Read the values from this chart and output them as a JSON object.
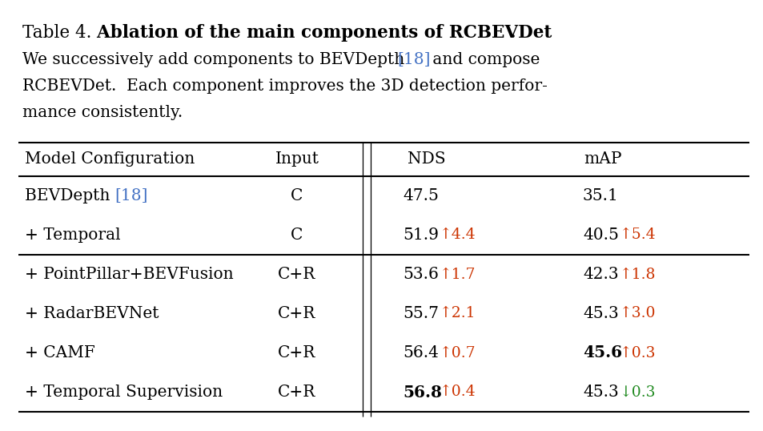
{
  "title_prefix": "Table 4.",
  "title_bold": "  Ablation of the main components of RCBEVDet",
  "subtitle_parts": [
    [
      {
        "text": "We successively add components to BEVDepth ",
        "color": "black",
        "bold": false
      },
      {
        "text": "[18]",
        "color": "#4472C4",
        "bold": false
      },
      {
        "text": " and compose",
        "color": "black",
        "bold": false
      }
    ],
    [
      {
        "text": "RCBEVDet.  Each component improves the 3D detection perfor-",
        "color": "black",
        "bold": false
      }
    ],
    [
      {
        "text": "mance consistently.",
        "color": "black",
        "bold": false
      }
    ]
  ],
  "col_headers": [
    "Model Configuration",
    "Input",
    "NDS",
    "mAP"
  ],
  "rows": [
    {
      "model_parts": [
        {
          "text": "BEVDepth ",
          "color": "black",
          "bold": false
        },
        {
          "text": "[18]",
          "color": "#4472C4",
          "bold": false
        }
      ],
      "input": "C",
      "nds_main": "47.5",
      "nds_delta": "",
      "nds_arrow": "",
      "nds_bold": false,
      "map_main": "35.1",
      "map_delta": "",
      "map_arrow": "",
      "map_bold": false
    },
    {
      "model_parts": [
        {
          "text": "+ Temporal",
          "color": "black",
          "bold": false
        }
      ],
      "input": "C",
      "nds_main": "51.9",
      "nds_delta": "4.4",
      "nds_arrow": "↑",
      "nds_bold": false,
      "map_main": "40.5",
      "map_delta": "5.4",
      "map_arrow": "↑",
      "map_bold": false
    },
    {
      "model_parts": [
        {
          "text": "+ PointPillar+BEVFusion",
          "color": "black",
          "bold": false
        }
      ],
      "input": "C+R",
      "nds_main": "53.6",
      "nds_delta": "1.7",
      "nds_arrow": "↑",
      "nds_bold": false,
      "map_main": "42.3",
      "map_delta": "1.8",
      "map_arrow": "↑",
      "map_bold": false
    },
    {
      "model_parts": [
        {
          "text": "+ RadarBEVNet",
          "color": "black",
          "bold": false
        }
      ],
      "input": "C+R",
      "nds_main": "55.7",
      "nds_delta": "2.1",
      "nds_arrow": "↑",
      "nds_bold": false,
      "map_main": "45.3",
      "map_delta": "3.0",
      "map_arrow": "↑",
      "map_bold": false
    },
    {
      "model_parts": [
        {
          "text": "+ CAMF",
          "color": "black",
          "bold": false
        }
      ],
      "input": "C+R",
      "nds_main": "56.4",
      "nds_delta": "0.7",
      "nds_arrow": "↑",
      "nds_bold": false,
      "map_main": "45.6",
      "map_delta": "0.3",
      "map_arrow": "↑",
      "map_bold": true
    },
    {
      "model_parts": [
        {
          "text": "+ Temporal Supervision",
          "color": "black",
          "bold": false
        }
      ],
      "input": "C+R",
      "nds_main": "56.8",
      "nds_delta": "0.4",
      "nds_arrow": "↑",
      "nds_bold": true,
      "map_main": "45.3",
      "map_delta": "0.3",
      "map_arrow": "↓",
      "map_bold": false
    }
  ],
  "delta_color_up": "#CC3300",
  "delta_color_down": "#228B22",
  "text_color": "#000000",
  "bg_color": "#FFFFFF",
  "line_color": "#000000",
  "fig_width": 9.54,
  "fig_height": 5.38,
  "dpi": 100
}
